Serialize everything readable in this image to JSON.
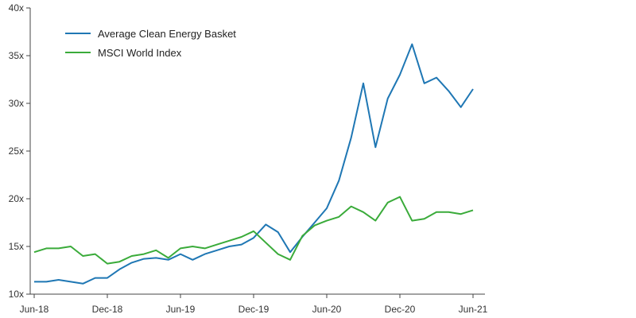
{
  "chart_data": {
    "type": "line",
    "x": [
      "Jun-18",
      "Jul-18",
      "Aug-18",
      "Sep-18",
      "Oct-18",
      "Nov-18",
      "Dec-18",
      "Jan-19",
      "Feb-19",
      "Mar-19",
      "Apr-19",
      "May-19",
      "Jun-19",
      "Jul-19",
      "Aug-19",
      "Sep-19",
      "Oct-19",
      "Nov-19",
      "Dec-19",
      "Jan-20",
      "Feb-20",
      "Mar-20",
      "Apr-20",
      "May-20",
      "Jun-20",
      "Jul-20",
      "Aug-20",
      "Sep-20",
      "Oct-20",
      "Nov-20",
      "Dec-20",
      "Jan-21",
      "Feb-21",
      "Mar-21",
      "Apr-21",
      "May-21",
      "Jun-21"
    ],
    "x_tick_labels": [
      "Jun-18",
      "Dec-18",
      "Jun-19",
      "Dec-19",
      "Jun-20",
      "Dec-20",
      "Jun-21"
    ],
    "x_tick_indices": [
      0,
      6,
      12,
      18,
      24,
      30,
      36
    ],
    "y_tick_labels": [
      "10x",
      "15x",
      "20x",
      "25x",
      "30x",
      "35x",
      "40x"
    ],
    "y_tick_values": [
      10,
      15,
      20,
      25,
      30,
      35,
      40
    ],
    "ylim": [
      10,
      40
    ],
    "title": "",
    "xlabel": "",
    "ylabel": "",
    "grid": false,
    "legend_position": "top-left",
    "series": [
      {
        "name": "Average Clean Energy Basket",
        "color": "#1f77b4",
        "values": [
          11.3,
          11.3,
          11.5,
          11.3,
          11.1,
          11.7,
          11.7,
          12.6,
          13.3,
          13.7,
          13.8,
          13.6,
          14.2,
          13.6,
          14.2,
          14.6,
          15.0,
          15.2,
          15.9,
          17.3,
          16.5,
          14.4,
          16.0,
          17.5,
          19.0,
          21.9,
          26.4,
          32.1,
          25.4,
          30.5,
          33.0,
          36.2,
          32.1,
          32.7,
          31.3,
          29.6,
          31.5
        ]
      },
      {
        "name": "MSCI World Index",
        "color": "#3aab3a",
        "values": [
          14.4,
          14.8,
          14.8,
          15.0,
          14.0,
          14.2,
          13.2,
          13.4,
          14.0,
          14.2,
          14.6,
          13.8,
          14.8,
          15.0,
          14.8,
          15.2,
          15.6,
          16.0,
          16.6,
          15.4,
          14.2,
          13.6,
          16.1,
          17.2,
          17.7,
          18.1,
          19.2,
          18.6,
          17.7,
          19.6,
          20.2,
          17.7,
          17.9,
          18.6,
          18.6,
          18.4,
          18.8
        ]
      }
    ]
  }
}
